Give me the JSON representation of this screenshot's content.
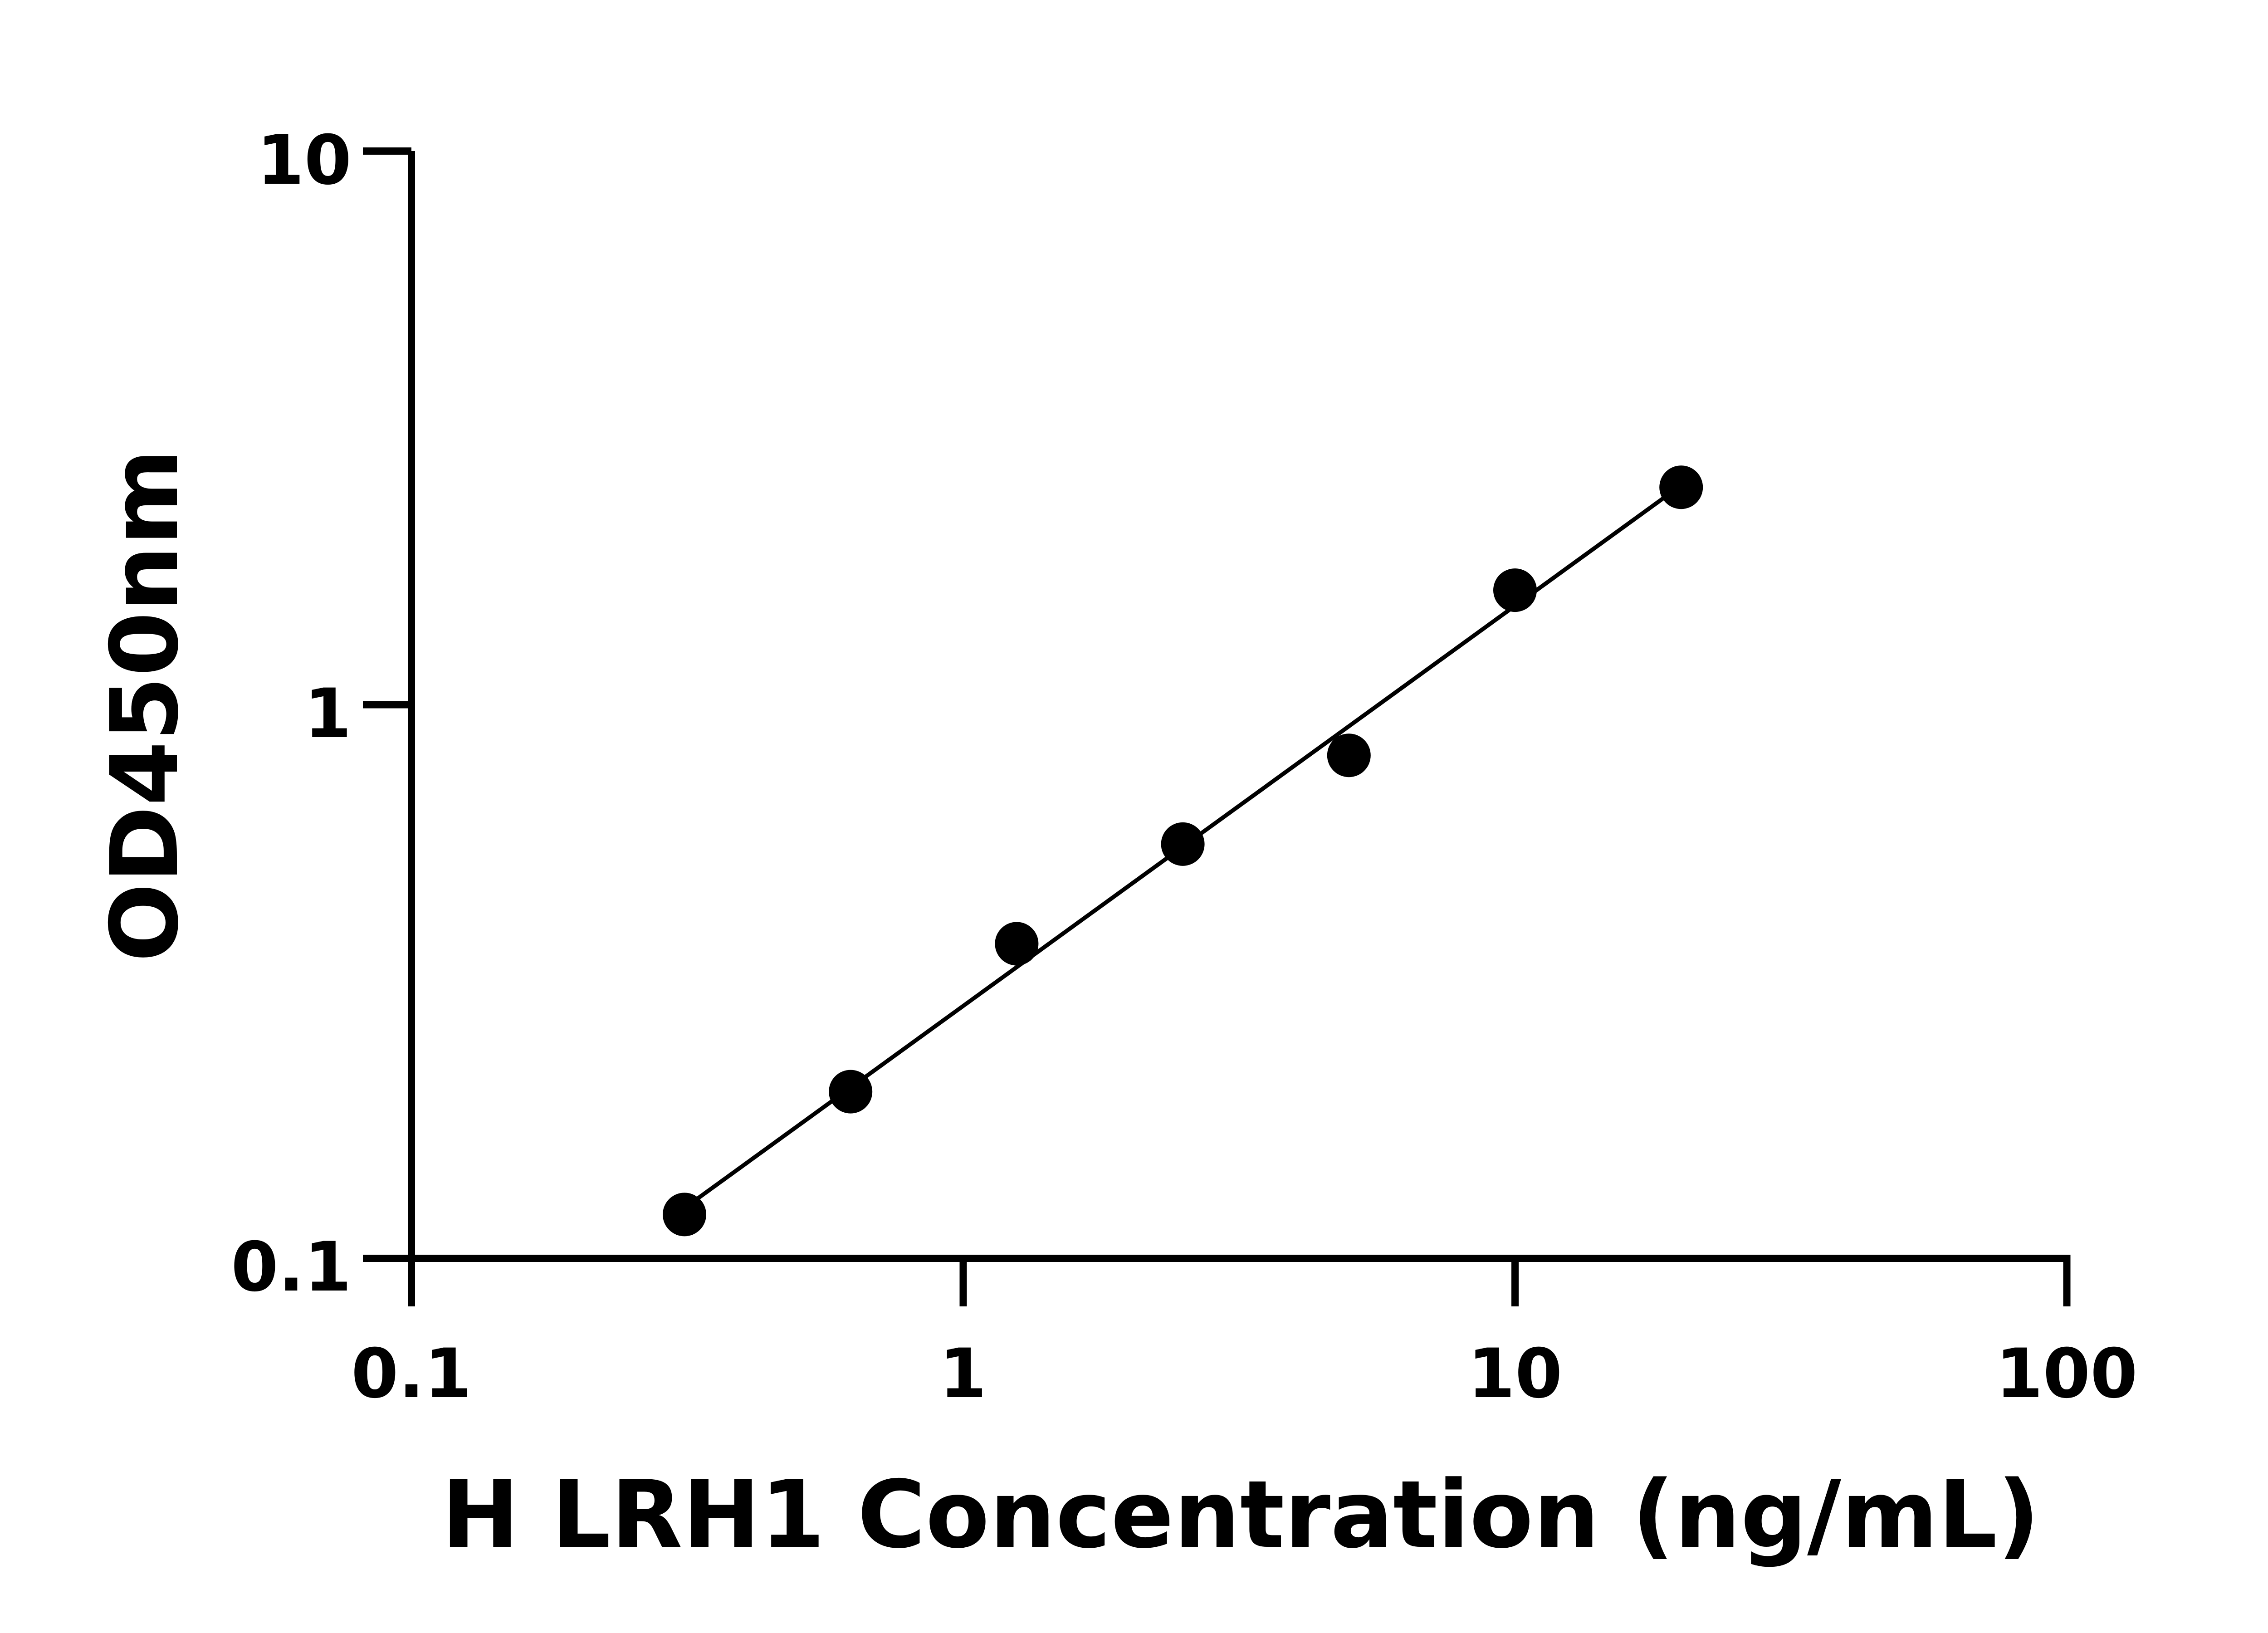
{
  "chart_data": {
    "type": "scatter",
    "xlabel": "H LRH1 Concentration (ng/mL)",
    "ylabel": "OD450nm",
    "x_scale": "log",
    "y_scale": "log",
    "xlim": [
      0.1,
      100
    ],
    "ylim": [
      0.1,
      10
    ],
    "x_ticks": [
      "0.1",
      "1",
      "10",
      "100"
    ],
    "y_ticks": [
      "0.1",
      "1",
      "10"
    ],
    "grid": false,
    "fit_line": "log-log linear",
    "points": [
      {
        "x": 0.3125,
        "y": 0.12
      },
      {
        "x": 0.625,
        "y": 0.2
      },
      {
        "x": 1.25,
        "y": 0.37
      },
      {
        "x": 2.5,
        "y": 0.56
      },
      {
        "x": 5,
        "y": 0.81
      },
      {
        "x": 10,
        "y": 1.61
      },
      {
        "x": 20,
        "y": 2.47
      }
    ],
    "marker_color": "#000000",
    "line_color": "#000000"
  }
}
